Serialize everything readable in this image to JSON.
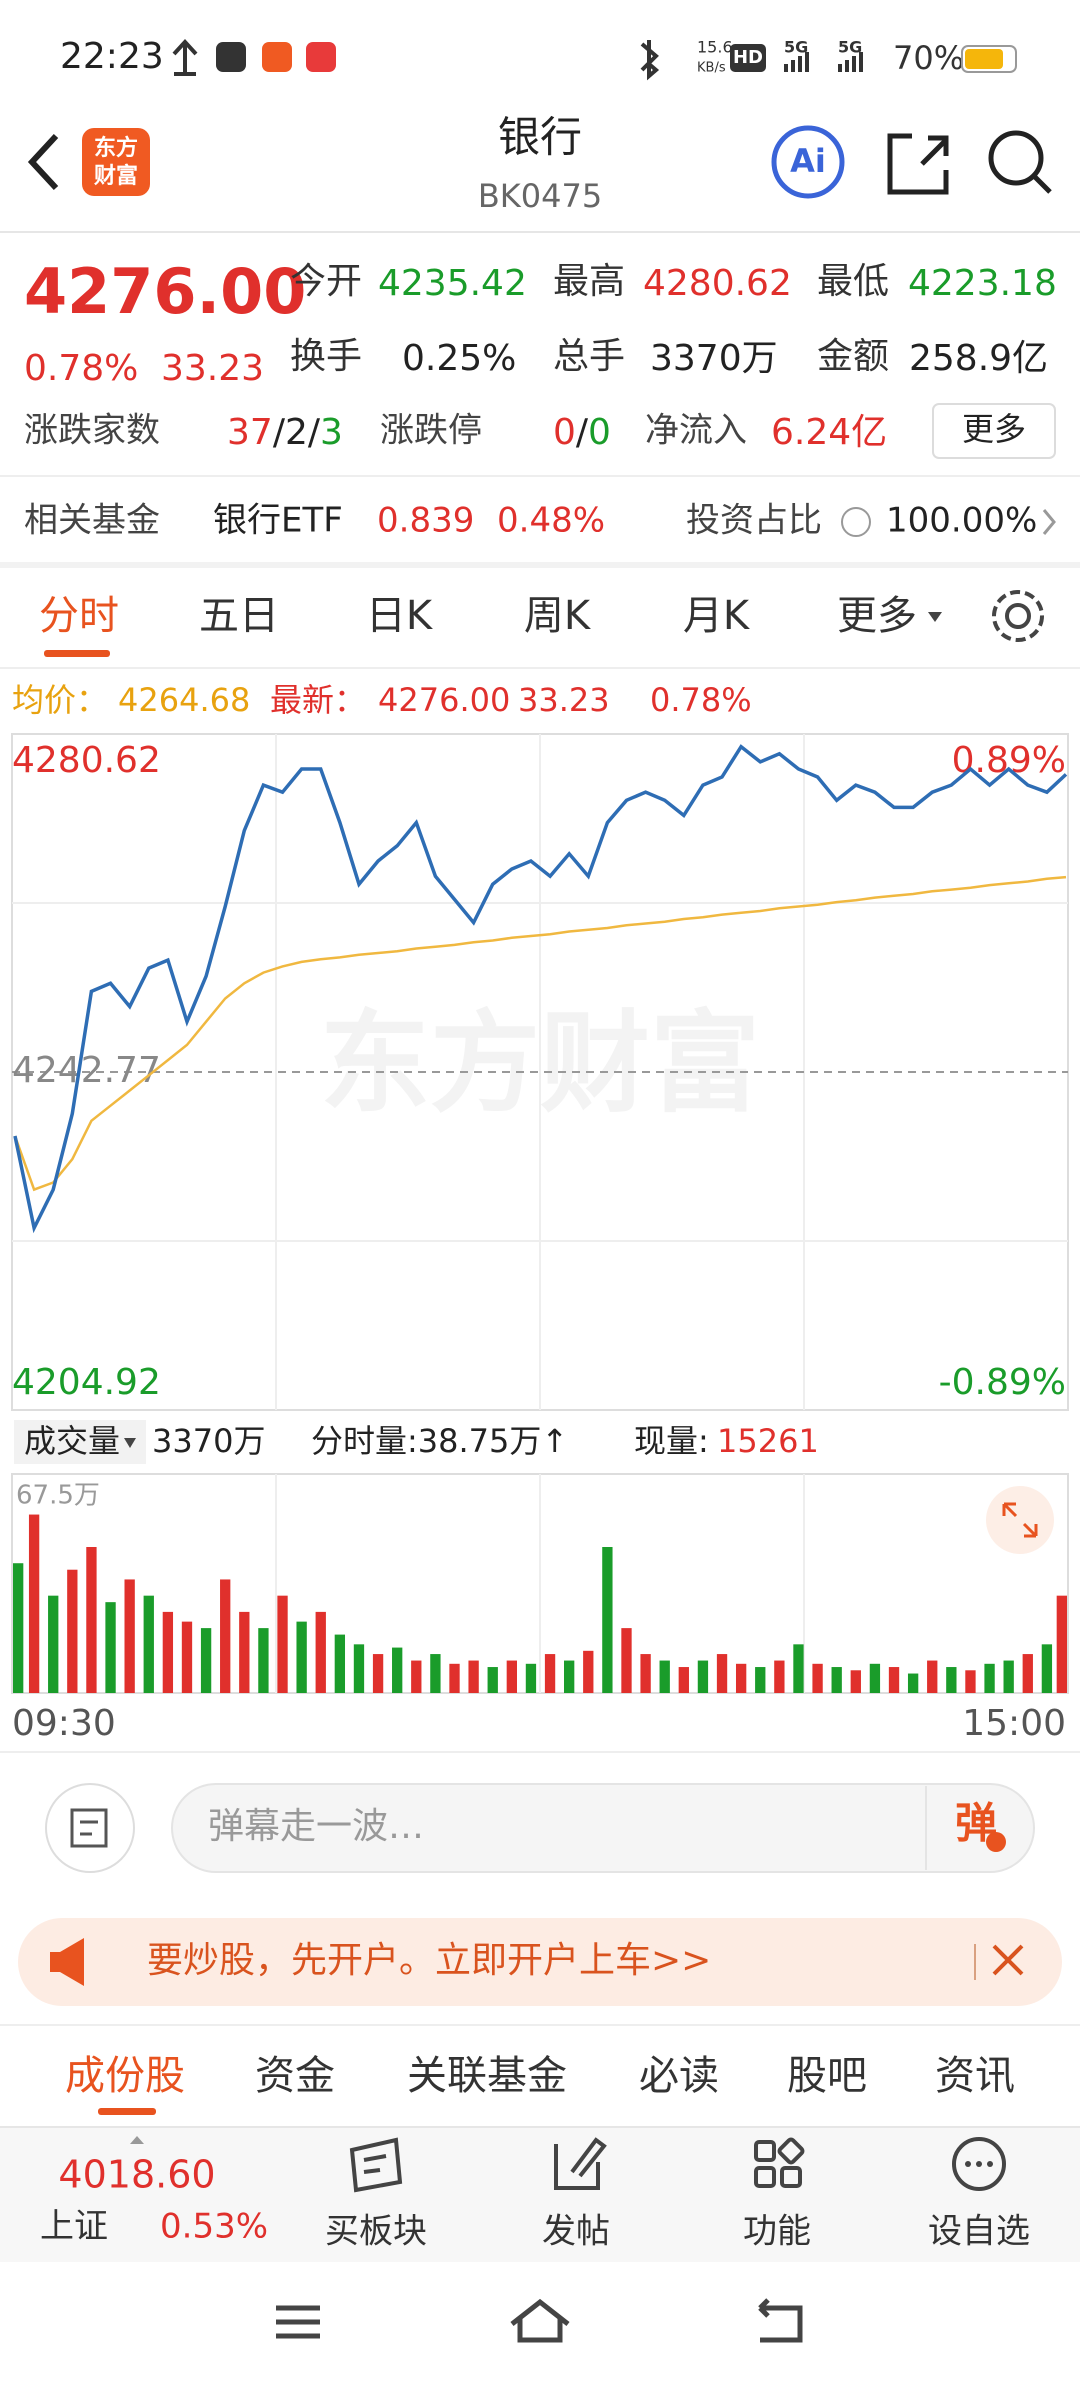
{
  "status_bar": {
    "time": "22:23",
    "net_speed": "15.6",
    "net_unit": "KB/s",
    "hd": "HD",
    "signal_1": "5G",
    "signal_2": "5G",
    "battery": "70%"
  },
  "header": {
    "logo_lines": [
      "东方",
      "财富"
    ],
    "title": "银行",
    "code": "BK0475",
    "ai": "Ai"
  },
  "quote": {
    "price": "4276.00",
    "change_pct": "0.78%",
    "change": "33.23",
    "fields": [
      {
        "label": "今开",
        "value": "4235.42",
        "color": "#1a9c2a"
      },
      {
        "label": "最高",
        "value": "4280.62",
        "color": "#e0302c"
      },
      {
        "label": "最低",
        "value": "4223.18",
        "color": "#1a9c2a"
      },
      {
        "label": "换手",
        "value": "0.25%",
        "color": "#222222"
      },
      {
        "label": "总手",
        "value": "3370万",
        "color": "#222222"
      },
      {
        "label": "金额",
        "value": "258.9亿",
        "color": "#222222"
      }
    ],
    "breadth_label": "涨跌家数",
    "breadth_parts": [
      "37",
      "/2/",
      "3"
    ],
    "limit_label": "涨跌停",
    "limit_parts": [
      "0",
      "/",
      "0"
    ],
    "inflow_label": "净流入",
    "inflow_value": "6.24亿",
    "more_button": "更多"
  },
  "fund": {
    "label": "相关基金",
    "name": "银行ETF",
    "price": "0.839",
    "change_pct": "0.48%",
    "share_label": "投资占比",
    "share_value": "100.00%"
  },
  "period_tabs": [
    "分时",
    "五日",
    "日K",
    "周K",
    "月K",
    "更多"
  ],
  "chart_data": [
    {
      "type": "line",
      "legend": {
        "avg_label": "均价：",
        "avg_value": "4264.68",
        "last_label": "最新：",
        "last_value": "4276.00",
        "last_change": "33.23",
        "last_pct": "0.78%"
      },
      "watermark": "东方财富",
      "series": [
        {
          "name": "最新",
          "color": "#2e6db4",
          "values": [
            4235.6,
            4225.3,
            4229.6,
            4238.1,
            4251.8,
            4252.7,
            4250.1,
            4254.4,
            4255.3,
            4248.4,
            4253.5,
            4261.3,
            4269.8,
            4274.9,
            4274.1,
            4276.7,
            4276.7,
            4270.7,
            4263.8,
            4266.4,
            4268.1,
            4270.7,
            4264.7,
            4262.1,
            4259.5,
            4263.8,
            4265.5,
            4266.4,
            4264.7,
            4267.2,
            4264.7,
            4270.7,
            4273.2,
            4274.1,
            4273.2,
            4271.5,
            4274.9,
            4275.8,
            4279.2,
            4277.5,
            4278.4,
            4276.7,
            4275.8,
            4273.2,
            4274.9,
            4274.1,
            4272.4,
            4272.4,
            4274.1,
            4274.9,
            4276.7,
            4274.9,
            4276.7,
            4274.9,
            4274.1,
            4276.1
          ]
        },
        {
          "name": "均价",
          "color": "#f0b840",
          "values": [
            4235.6,
            4229.6,
            4230.4,
            4233.0,
            4237.3,
            4239.0,
            4240.7,
            4242.4,
            4244.1,
            4245.8,
            4248.4,
            4251.0,
            4252.7,
            4253.9,
            4254.6,
            4255.1,
            4255.4,
            4255.6,
            4255.9,
            4256.1,
            4256.3,
            4256.6,
            4256.8,
            4257.0,
            4257.3,
            4257.5,
            4257.8,
            4258.0,
            4258.2,
            4258.5,
            4258.7,
            4258.9,
            4259.2,
            4259.4,
            4259.6,
            4259.9,
            4260.1,
            4260.4,
            4260.6,
            4260.8,
            4261.1,
            4261.3,
            4261.5,
            4261.8,
            4262.0,
            4262.3,
            4262.5,
            4262.7,
            4263.0,
            4263.2,
            4263.4,
            4263.7,
            4263.9,
            4264.1,
            4264.4,
            4264.6
          ]
        }
      ],
      "ylim": [
        4204.92,
        4280.62
      ],
      "yticks": [
        4204.92,
        4242.77,
        4280.62
      ],
      "y2lim": [
        -0.89,
        0.89
      ],
      "y2ticks": [
        {
          "value": -0.89,
          "label": "-0.89%"
        },
        {
          "value": 0.89,
          "label": "0.89%"
        }
      ],
      "grid": true
    },
    {
      "type": "bar",
      "header": {
        "label": "成交量",
        "total": "3370万",
        "minute": "分时量:38.75万↑",
        "current_label": "现量:",
        "current_value": "15261"
      },
      "values": [
        40,
        55,
        30,
        38,
        45,
        28,
        35,
        30,
        25,
        22,
        20,
        35,
        25,
        20,
        30,
        22,
        25,
        18,
        15,
        12,
        14,
        10,
        12,
        9,
        10,
        8,
        10,
        9,
        12,
        10,
        13,
        45,
        20,
        12,
        10,
        8,
        10,
        12,
        9,
        8,
        10,
        15,
        9,
        8,
        7,
        9,
        8,
        6,
        10,
        8,
        7,
        9,
        10,
        12,
        15,
        30
      ],
      "colors": [
        "#1a9c2a",
        "#e0302c",
        "#1a9c2a",
        "#e0302c",
        "#e0302c",
        "#1a9c2a",
        "#e0302c",
        "#1a9c2a",
        "#e0302c",
        "#e0302c",
        "#1a9c2a",
        "#e0302c",
        "#e0302c",
        "#1a9c2a",
        "#e0302c",
        "#1a9c2a",
        "#e0302c",
        "#1a9c2a",
        "#1a9c2a",
        "#e0302c",
        "#1a9c2a",
        "#e0302c",
        "#1a9c2a",
        "#e0302c",
        "#e0302c",
        "#1a9c2a",
        "#e0302c",
        "#1a9c2a",
        "#e0302c",
        "#1a9c2a",
        "#e0302c",
        "#1a9c2a",
        "#e0302c",
        "#e0302c",
        "#1a9c2a",
        "#e0302c",
        "#1a9c2a",
        "#e0302c",
        "#e0302c",
        "#1a9c2a",
        "#e0302c",
        "#1a9c2a",
        "#e0302c",
        "#1a9c2a",
        "#e0302c",
        "#1a9c2a",
        "#e0302c",
        "#1a9c2a",
        "#e0302c",
        "#1a9c2a",
        "#e0302c",
        "#1a9c2a",
        "#1a9c2a",
        "#e0302c",
        "#1a9c2a",
        "#e0302c"
      ],
      "ylim": [
        0,
        67.5
      ],
      "yticks": [
        {
          "value": 67.5,
          "label": "67.5万"
        }
      ],
      "x_labels": [
        "09:30",
        "15:00"
      ]
    }
  ],
  "comment": {
    "placeholder": "弹幕走一波…",
    "danmaku_button": "弹"
  },
  "banner": {
    "text": "要炒股，先开户。立即开户上车>>"
  },
  "content_tabs": [
    "成份股",
    "资金",
    "关联基金",
    "必读",
    "股吧",
    "资讯"
  ],
  "footer": {
    "index_value": "4018.60",
    "index_name": "上证",
    "index_pct": "0.53%",
    "items": [
      "买板块",
      "发帖",
      "功能",
      "设自选"
    ]
  }
}
